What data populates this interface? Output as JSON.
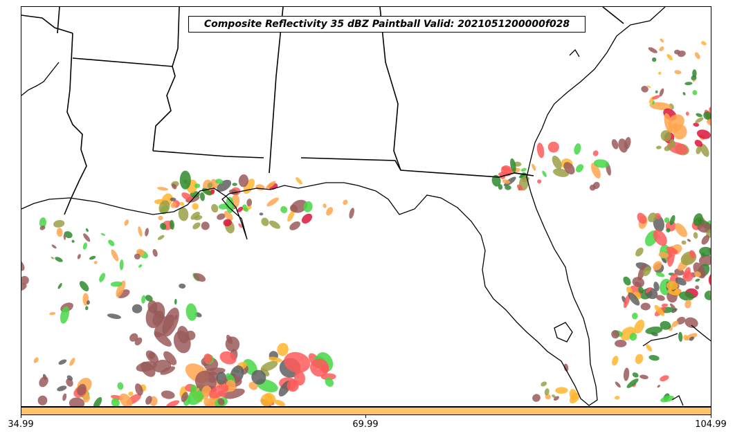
{
  "title": "Composite Reflectivity 35 dBZ Paintball Valid: 2021051200000f028",
  "colorbar": {
    "color": "#ffc469",
    "tick_labels": [
      "34.99",
      "69.99",
      "104.99"
    ]
  },
  "member_colors": [
    "#9b5a5a",
    "#ff5a5a",
    "#ffa64d",
    "#ffb52e",
    "#45d845",
    "#2e8b2e",
    "#5f5f5f",
    "#9aa048",
    "#dc143c",
    "#c8b44a"
  ],
  "map": {
    "region": "Gulf of Mexico / Southeast United States",
    "features": [
      "coastlines",
      "state-borders"
    ]
  }
}
